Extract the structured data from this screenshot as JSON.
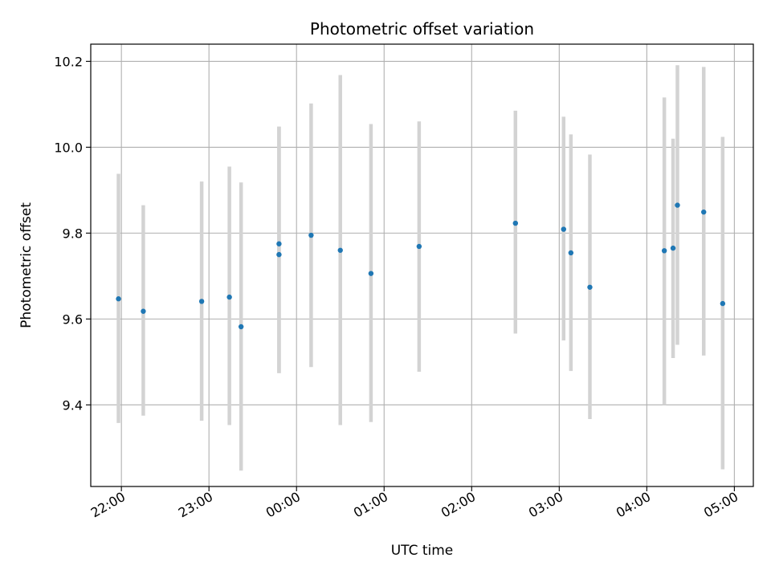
{
  "chart_data": {
    "type": "scatter",
    "title": "Photometric offset variation",
    "xlabel": "UTC time",
    "ylabel": "Photometric offset",
    "x_axis": "time",
    "xlim": [
      "21:39",
      "05:13"
    ],
    "ylim": [
      9.21,
      10.24
    ],
    "x_ticks": [
      "22:00",
      "23:00",
      "00:00",
      "01:00",
      "02:00",
      "03:00",
      "04:00",
      "05:00"
    ],
    "y_ticks": [
      9.4,
      9.6,
      9.8,
      10.0,
      10.2
    ],
    "grid": true,
    "colors": {
      "points": "#1f77b4",
      "errorbars": "#d3d3d3",
      "grid": "#b0b0b0"
    },
    "points": [
      {
        "x": "21:58",
        "y": 9.647,
        "err_low": 9.358,
        "err_high": 9.938
      },
      {
        "x": "22:15",
        "y": 9.618,
        "err_low": 9.375,
        "err_high": 9.865
      },
      {
        "x": "22:55",
        "y": 9.641,
        "err_low": 9.363,
        "err_high": 9.92
      },
      {
        "x": "23:14",
        "y": 9.651,
        "err_low": 9.353,
        "err_high": 9.955
      },
      {
        "x": "23:22",
        "y": 9.582,
        "err_low": 9.247,
        "err_high": 9.918
      },
      {
        "x": "23:48",
        "y": 9.75,
        "err_low": 9.474,
        "err_high": 10.048
      },
      {
        "x": "23:48",
        "y": 9.775,
        "err_low": 9.474,
        "err_high": 10.048
      },
      {
        "x": "00:10",
        "y": 9.795,
        "err_low": 9.488,
        "err_high": 10.102
      },
      {
        "x": "00:30",
        "y": 9.76,
        "err_low": 9.353,
        "err_high": 10.168
      },
      {
        "x": "00:51",
        "y": 9.706,
        "err_low": 9.36,
        "err_high": 10.054
      },
      {
        "x": "01:24",
        "y": 9.769,
        "err_low": 9.477,
        "err_high": 10.06
      },
      {
        "x": "02:30",
        "y": 9.823,
        "err_low": 9.566,
        "err_high": 10.085
      },
      {
        "x": "03:03",
        "y": 9.809,
        "err_low": 9.55,
        "err_high": 10.071
      },
      {
        "x": "03:08",
        "y": 9.754,
        "err_low": 9.479,
        "err_high": 10.03
      },
      {
        "x": "03:21",
        "y": 9.674,
        "err_low": 9.367,
        "err_high": 9.983
      },
      {
        "x": "04:12",
        "y": 9.759,
        "err_low": 9.4,
        "err_high": 10.116
      },
      {
        "x": "04:18",
        "y": 9.765,
        "err_low": 9.509,
        "err_high": 10.02
      },
      {
        "x": "04:21",
        "y": 9.865,
        "err_low": 9.54,
        "err_high": 10.191
      },
      {
        "x": "04:39",
        "y": 9.849,
        "err_low": 9.515,
        "err_high": 10.187
      },
      {
        "x": "04:52",
        "y": 9.636,
        "err_low": 9.25,
        "err_high": 10.024
      }
    ]
  }
}
